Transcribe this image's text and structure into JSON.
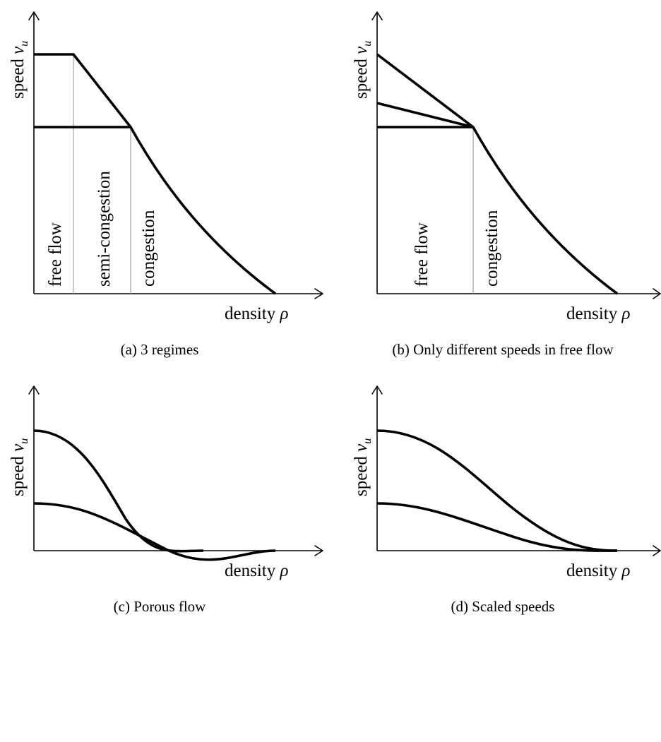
{
  "panels": [
    {
      "caption": "(a) 3 regimes",
      "ylabel": "speed",
      "ylabel_symbol": "v",
      "ylabel_subscript": "u",
      "xlabel": "density",
      "xlabel_symbol": "ρ",
      "regions": [
        "free flow",
        "semi-congestion",
        "congestion"
      ]
    },
    {
      "caption": "(b) Only different speeds in free flow",
      "ylabel": "speed",
      "ylabel_symbol": "v",
      "ylabel_subscript": "u",
      "xlabel": "density",
      "xlabel_symbol": "ρ",
      "regions": [
        "free flow",
        "congestion"
      ]
    },
    {
      "caption": "(c) Porous flow",
      "ylabel": "speed",
      "ylabel_symbol": "v",
      "ylabel_subscript": "u",
      "xlabel": "density",
      "xlabel_symbol": "ρ"
    },
    {
      "caption": "(d) Scaled speeds",
      "ylabel": "speed",
      "ylabel_symbol": "v",
      "ylabel_subscript": "u",
      "xlabel": "density",
      "xlabel_symbol": "ρ"
    }
  ]
}
